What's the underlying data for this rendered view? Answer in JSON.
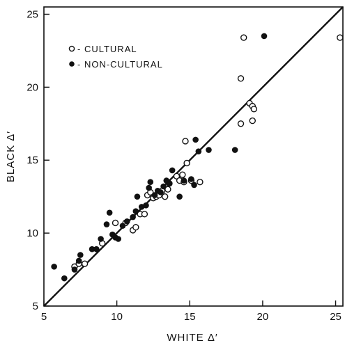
{
  "chart_data": {
    "type": "scatter",
    "title": "",
    "xlabel": "WHITE Δ′",
    "ylabel": "BLACK Δ′",
    "xlim": [
      5,
      25.5
    ],
    "ylim": [
      5,
      25.5
    ],
    "xticks": [
      5,
      10,
      15,
      20,
      25
    ],
    "yticks": [
      5,
      10,
      15,
      20,
      25
    ],
    "grid": false,
    "legend_position": "top-left",
    "reference_line": {
      "from": [
        5,
        5
      ],
      "to": [
        25.5,
        25.5
      ]
    },
    "series": [
      {
        "name": "- CULTURAL",
        "marker": "open-circle",
        "color": "#111111",
        "points": [
          [
            7.1,
            7.7
          ],
          [
            7.4,
            7.9
          ],
          [
            7.8,
            7.9
          ],
          [
            9.0,
            9.3
          ],
          [
            9.9,
            10.7
          ],
          [
            10.6,
            10.7
          ],
          [
            11.1,
            10.2
          ],
          [
            11.3,
            10.4
          ],
          [
            11.6,
            11.3
          ],
          [
            11.9,
            11.3
          ],
          [
            12.1,
            12.6
          ],
          [
            12.3,
            12.8
          ],
          [
            12.5,
            12.4
          ],
          [
            12.7,
            12.5
          ],
          [
            12.9,
            12.6
          ],
          [
            13.1,
            12.9
          ],
          [
            13.3,
            12.5
          ],
          [
            13.5,
            13.0
          ],
          [
            13.6,
            13.4
          ],
          [
            14.1,
            13.9
          ],
          [
            14.3,
            13.6
          ],
          [
            14.5,
            14.0
          ],
          [
            14.6,
            13.5
          ],
          [
            14.8,
            14.8
          ],
          [
            15.1,
            13.6
          ],
          [
            15.7,
            13.5
          ],
          [
            14.7,
            16.3
          ],
          [
            18.5,
            17.5
          ],
          [
            18.5,
            20.6
          ],
          [
            18.7,
            23.4
          ],
          [
            19.1,
            18.9
          ],
          [
            19.3,
            18.7
          ],
          [
            19.4,
            18.5
          ],
          [
            19.3,
            17.7
          ],
          [
            25.3,
            23.4
          ]
        ]
      },
      {
        "name": "- NON-CULTURAL",
        "marker": "filled-circle",
        "color": "#111111",
        "points": [
          [
            5.7,
            7.7
          ],
          [
            6.4,
            6.9
          ],
          [
            7.1,
            7.5
          ],
          [
            7.4,
            8.1
          ],
          [
            7.5,
            8.5
          ],
          [
            8.3,
            8.9
          ],
          [
            8.6,
            8.9
          ],
          [
            8.9,
            9.6
          ],
          [
            9.3,
            10.6
          ],
          [
            9.5,
            11.4
          ],
          [
            9.7,
            9.9
          ],
          [
            9.9,
            9.7
          ],
          [
            10.1,
            9.6
          ],
          [
            10.4,
            10.5
          ],
          [
            10.7,
            10.8
          ],
          [
            11.1,
            11.1
          ],
          [
            11.3,
            11.5
          ],
          [
            11.4,
            12.5
          ],
          [
            11.7,
            11.8
          ],
          [
            12.0,
            11.9
          ],
          [
            12.2,
            13.1
          ],
          [
            12.3,
            13.5
          ],
          [
            12.6,
            12.6
          ],
          [
            12.8,
            12.9
          ],
          [
            13.0,
            12.8
          ],
          [
            13.2,
            13.2
          ],
          [
            13.4,
            13.6
          ],
          [
            13.6,
            13.4
          ],
          [
            13.8,
            14.3
          ],
          [
            14.3,
            12.5
          ],
          [
            14.6,
            13.6
          ],
          [
            15.1,
            13.7
          ],
          [
            15.3,
            13.3
          ],
          [
            15.4,
            16.4
          ],
          [
            15.6,
            15.6
          ],
          [
            16.3,
            15.7
          ],
          [
            18.1,
            15.7
          ],
          [
            20.1,
            23.5
          ]
        ]
      }
    ]
  }
}
